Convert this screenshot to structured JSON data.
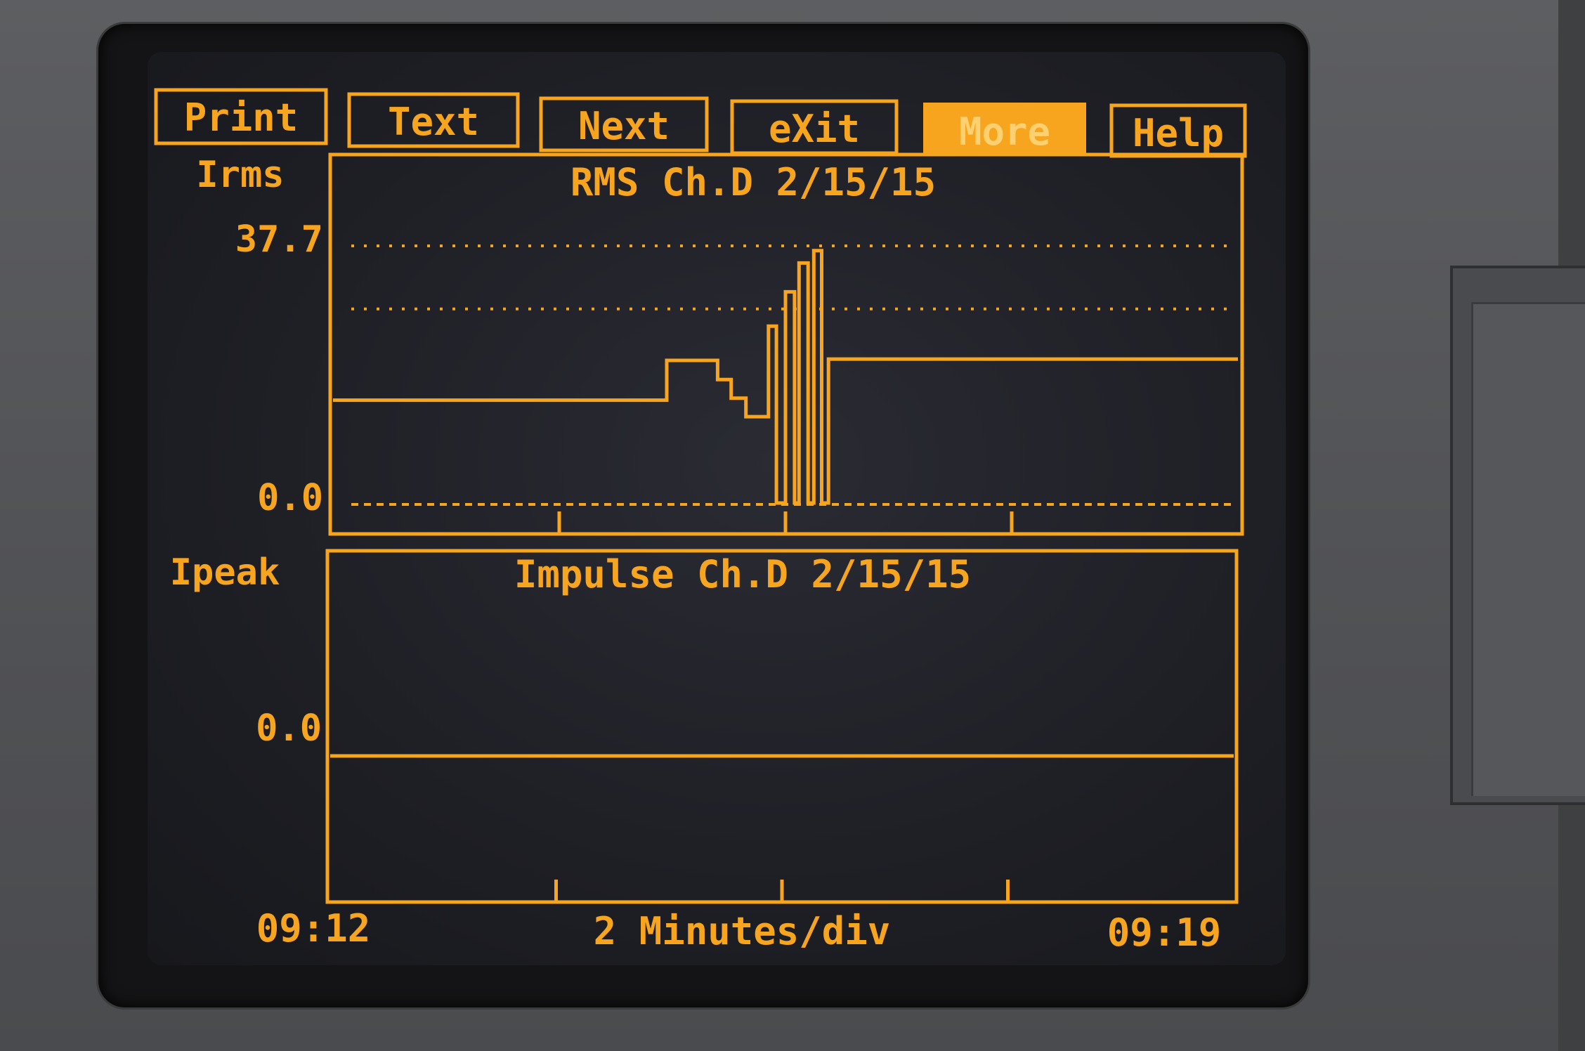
{
  "softkeys": [
    {
      "label": "Print",
      "active": false
    },
    {
      "label": "Text",
      "active": false
    },
    {
      "label": "Next",
      "active": false
    },
    {
      "label": "eXit",
      "active": false
    },
    {
      "label": "More",
      "active": true
    },
    {
      "label": "Help",
      "active": false
    }
  ],
  "rms_panel": {
    "y_label": "Irms",
    "title": "RMS Ch.D 2/15/15",
    "y_max_label": "37.7",
    "y_min_label": "0.0"
  },
  "impulse_panel": {
    "y_label": "Ipeak",
    "title": "Impulse Ch.D 2/15/15",
    "y_zero_label": "0.0"
  },
  "time_axis": {
    "start": "09:12",
    "scale": "2 Minutes/div",
    "end": "09:19"
  },
  "colors": {
    "amber": "#f7a41e",
    "screen_bg": "#1e1f25",
    "bezel": "#141416",
    "device": "#56575a"
  },
  "chart_data": [
    {
      "type": "line",
      "title": "RMS Ch.D 2/15/15",
      "ylabel": "Irms",
      "xlabel": "2 Minutes/div",
      "ylim": [
        0,
        37.7
      ],
      "x_start_label": "09:12",
      "x_end_label": "09:19",
      "x_unit": "minutes after 09:12",
      "reference_lines": [
        {
          "value": 37.7,
          "style": "dotted"
        },
        {
          "value": 28.5,
          "style": "dotted"
        },
        {
          "value": 0.0,
          "style": "dashed"
        }
      ],
      "series": [
        {
          "x": [
            0.0,
            2.95,
            2.95,
            3.05,
            3.05,
            3.4,
            3.4,
            3.52,
            3.52,
            3.65,
            3.65,
            3.85,
            3.85,
            3.92,
            3.92,
            4.0,
            4.0,
            4.08,
            4.08,
            4.12,
            4.12,
            4.2,
            4.2,
            4.25,
            4.25,
            4.32,
            4.32,
            4.38,
            4.38,
            8.0
          ],
          "y": [
            15.2,
            15.2,
            21.0,
            21.0,
            21.0,
            21.0,
            18.2,
            18.2,
            15.5,
            15.5,
            12.8,
            12.8,
            26.0,
            26.0,
            0.2,
            0.2,
            31.0,
            31.0,
            0.2,
            0.2,
            35.2,
            35.2,
            0.2,
            0.2,
            37.0,
            37.0,
            0.2,
            0.2,
            21.2,
            21.2
          ]
        }
      ],
      "grid": false
    },
    {
      "type": "line",
      "title": "Impulse Ch.D 2/15/15",
      "ylabel": "Ipeak",
      "xlabel": "2 Minutes/div",
      "x_start_label": "09:12",
      "x_end_label": "09:19",
      "x_unit": "minutes after 09:12",
      "series": [
        {
          "x": [
            0.0,
            8.0
          ],
          "y": [
            0.0,
            0.0
          ]
        }
      ],
      "grid": false
    }
  ]
}
